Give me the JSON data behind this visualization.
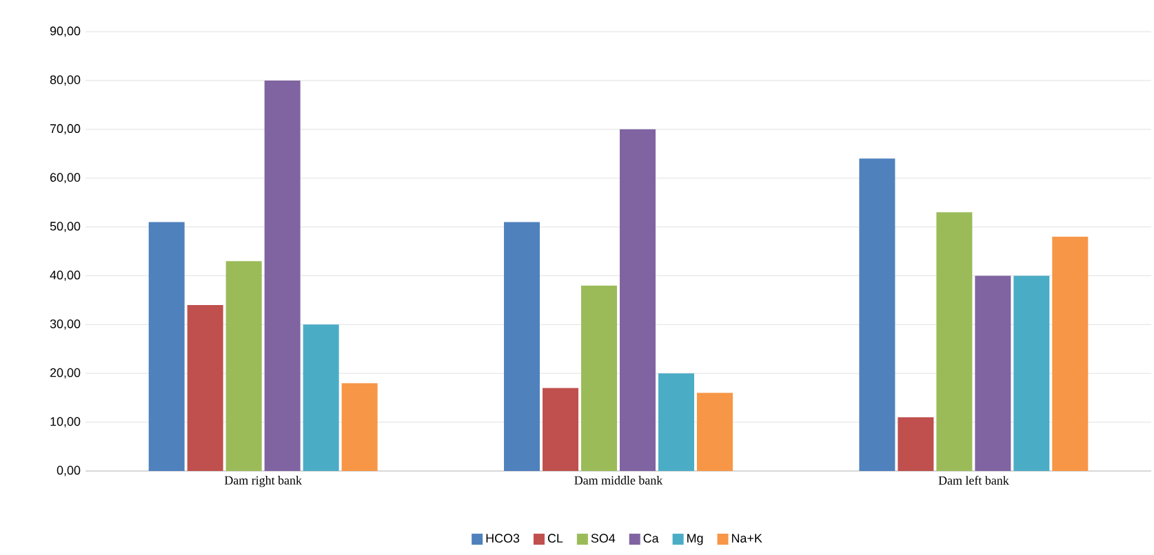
{
  "chart_data": {
    "type": "bar",
    "categories": [
      "Dam right bank",
      "Dam middle bank",
      "Dam left bank"
    ],
    "series": [
      {
        "name": "HCO3",
        "color": "#4f81bd",
        "values": [
          51,
          51,
          64
        ]
      },
      {
        "name": "CL",
        "color": "#c0504d",
        "values": [
          34,
          17,
          11
        ]
      },
      {
        "name": "SO4",
        "color": "#9bbb59",
        "values": [
          43,
          38,
          53
        ]
      },
      {
        "name": "Ca",
        "color": "#8064a2",
        "values": [
          80,
          70,
          40
        ]
      },
      {
        "name": "Mg",
        "color": "#4bacc6",
        "values": [
          30,
          20,
          40
        ]
      },
      {
        "name": "Na+K",
        "color": "#f79646",
        "values": [
          18,
          16,
          48
        ]
      }
    ],
    "ylim": [
      0,
      90
    ],
    "yticks": [
      {
        "value": 0,
        "label": "0,00"
      },
      {
        "value": 10,
        "label": "10,00"
      },
      {
        "value": 20,
        "label": "20,00"
      },
      {
        "value": 30,
        "label": "30,00"
      },
      {
        "value": 40,
        "label": "40,00"
      },
      {
        "value": 50,
        "label": "50,00"
      },
      {
        "value": 60,
        "label": "60,00"
      },
      {
        "value": 70,
        "label": "70,00"
      },
      {
        "value": 80,
        "label": "80,00"
      },
      {
        "value": 90,
        "label": "90,00"
      }
    ],
    "grid": true,
    "legend": "bottom"
  }
}
